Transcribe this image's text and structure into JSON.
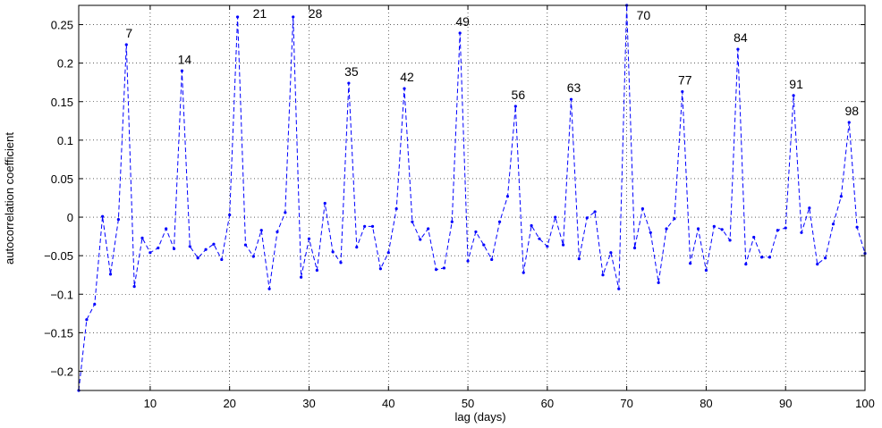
{
  "chart_data": {
    "type": "line",
    "title": "",
    "xlabel": "lag (days)",
    "ylabel": "autocorrelation coefficient",
    "xlim": [
      1,
      100
    ],
    "ylim": [
      -0.225,
      0.275
    ],
    "grid": true,
    "x_ticks": [
      "10",
      "20",
      "30",
      "40",
      "50",
      "60",
      "70",
      "80",
      "90",
      "100"
    ],
    "y_ticks": [
      "0.25",
      "0.2",
      "0.15",
      "0.1",
      "0.05",
      "0",
      "−0.05",
      "−0.1",
      "−0.15",
      "−0.2"
    ],
    "series": [
      {
        "color": "#0000ff",
        "line_style": "dashed",
        "marker": "dot",
        "x": [
          1,
          2,
          3,
          4,
          5,
          6,
          7,
          8,
          9,
          10,
          11,
          12,
          13,
          14,
          15,
          16,
          17,
          18,
          19,
          20,
          21,
          22,
          23,
          24,
          25,
          26,
          27,
          28,
          29,
          30,
          31,
          32,
          33,
          34,
          35,
          36,
          37,
          38,
          39,
          40,
          41,
          42,
          43,
          44,
          45,
          46,
          47,
          48,
          49,
          50,
          51,
          52,
          53,
          54,
          55,
          56,
          57,
          58,
          59,
          60,
          61,
          62,
          63,
          64,
          65,
          66,
          67,
          68,
          69,
          70,
          71,
          72,
          73,
          74,
          75,
          76,
          77,
          78,
          79,
          80,
          81,
          82,
          83,
          84,
          85,
          86,
          87,
          88,
          89,
          90,
          91,
          92,
          93,
          94,
          95,
          96,
          97,
          98,
          99,
          100
        ],
        "y": [
          -0.225,
          -0.133,
          -0.113,
          0.001,
          -0.074,
          -0.003,
          0.224,
          -0.09,
          -0.027,
          -0.046,
          -0.04,
          -0.015,
          -0.041,
          0.19,
          -0.038,
          -0.053,
          -0.042,
          -0.035,
          -0.055,
          0.003,
          0.26,
          -0.036,
          -0.051,
          -0.017,
          -0.093,
          -0.019,
          0.006,
          0.26,
          -0.078,
          -0.028,
          -0.069,
          0.018,
          -0.045,
          -0.059,
          0.174,
          -0.039,
          -0.012,
          -0.012,
          -0.067,
          -0.046,
          0.011,
          0.167,
          -0.006,
          -0.029,
          -0.015,
          -0.068,
          -0.066,
          -0.006,
          0.239,
          -0.057,
          -0.019,
          -0.036,
          -0.055,
          -0.006,
          0.027,
          0.144,
          -0.072,
          -0.011,
          -0.028,
          -0.038,
          0.0,
          -0.036,
          0.153,
          -0.054,
          -0.001,
          0.007,
          -0.075,
          -0.046,
          -0.093,
          0.275,
          -0.04,
          0.011,
          -0.02,
          -0.085,
          -0.015,
          -0.002,
          0.163,
          -0.06,
          -0.015,
          -0.069,
          -0.012,
          -0.016,
          -0.03,
          0.218,
          -0.061,
          -0.026,
          -0.052,
          -0.052,
          -0.017,
          -0.014,
          0.158,
          -0.02,
          0.012,
          -0.061,
          -0.053,
          -0.009,
          0.027,
          0.123,
          -0.013,
          -0.047
        ]
      }
    ],
    "annotations": [
      {
        "x": 7,
        "y": 0.224,
        "text": "7"
      },
      {
        "x": 14,
        "y": 0.19,
        "text": "14"
      },
      {
        "x": 21,
        "y": 0.26,
        "text": "21"
      },
      {
        "x": 28,
        "y": 0.26,
        "text": "28"
      },
      {
        "x": 35,
        "y": 0.174,
        "text": "35"
      },
      {
        "x": 42,
        "y": 0.167,
        "text": "42"
      },
      {
        "x": 49,
        "y": 0.239,
        "text": "49"
      },
      {
        "x": 56,
        "y": 0.144,
        "text": "56"
      },
      {
        "x": 63,
        "y": 0.153,
        "text": "63"
      },
      {
        "x": 70,
        "y": 0.275,
        "text": "70"
      },
      {
        "x": 77,
        "y": 0.163,
        "text": "77"
      },
      {
        "x": 84,
        "y": 0.218,
        "text": "84"
      },
      {
        "x": 91,
        "y": 0.158,
        "text": "91"
      },
      {
        "x": 98,
        "y": 0.123,
        "text": "98"
      }
    ]
  }
}
